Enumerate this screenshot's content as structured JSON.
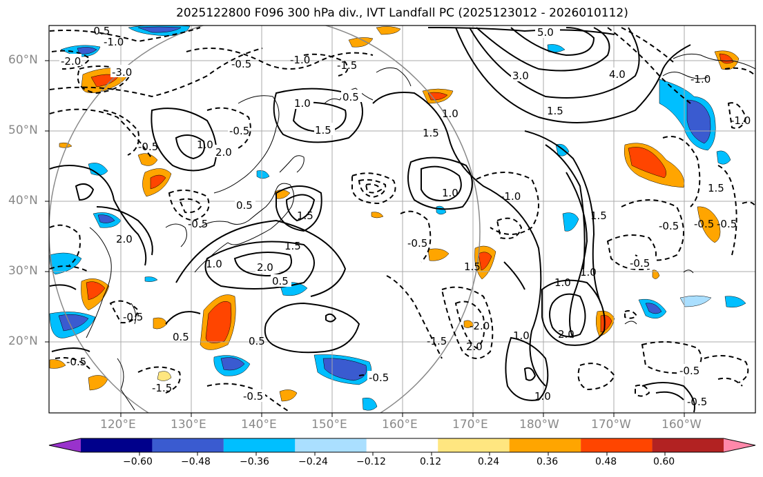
{
  "title": "2025122800 F096 300 hPa div., IVT Landfall PC (2025123012 - 2026010112)",
  "lat_labels": [
    "60°N",
    "50°N",
    "40°N",
    "30°N",
    "20°N"
  ],
  "lon_labels": [
    "120°E",
    "130°E",
    "140°E",
    "150°E",
    "160°E",
    "170°E",
    "180°W",
    "170°W",
    "160°W"
  ],
  "colorbar": {
    "ticks": [
      "−0.60",
      "−0.48",
      "−0.36",
      "−0.24",
      "−0.12",
      "0.12",
      "0.24",
      "0.36",
      "0.48",
      "0.60"
    ],
    "colors": [
      "#9932cc",
      "#00008b",
      "#3a5bd0",
      "#00bfff",
      "#aadfff",
      "#ffffff",
      "#ffe680",
      "#ffa500",
      "#ff4500",
      "#b22222",
      "#ff88aa"
    ]
  },
  "contour_labels": {
    "solid": [
      "5.0",
      "4.0",
      "3.0",
      "1.5",
      "1.0",
      "0.5",
      "2.0",
      "1.5",
      "1.0",
      "2.0",
      "1.5",
      "1.0",
      "1.5",
      "0.5",
      "2.0",
      "1.5",
      "1.0",
      "1.0",
      "0.5",
      "1.5",
      "0.5",
      "1.0",
      "2.0",
      "1.5",
      "1.0",
      "1.5",
      "1.0",
      "2.0",
      "1.0",
      "0.5"
    ],
    "dashed": [
      "-0.5",
      "-1.0",
      "-2.0",
      "-3.0",
      "-0.5",
      "-1.0",
      "-1.5",
      "-0.5",
      "-0.5",
      "-0.5",
      "-0.5",
      "-1.0",
      "-1.5",
      "-2.0",
      "-0.5",
      "-1.0",
      "-0.5",
      "-0.5",
      "-0.5",
      "-1.0",
      "-0.5",
      "-0.5",
      "-0.5",
      "-1.5",
      "-0.5",
      "-0.5",
      "-0.5"
    ]
  }
}
